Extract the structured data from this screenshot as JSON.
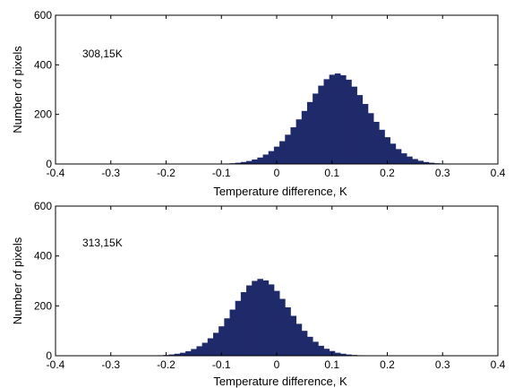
{
  "chart_data": [
    {
      "type": "bar",
      "annotation": "308,15K",
      "xlabel": "Temperature difference, K",
      "ylabel": "Number of pixels",
      "xlim": [
        -0.4,
        0.4
      ],
      "ylim": [
        0,
        600
      ],
      "xticks": [
        "-0.4",
        "-0.3",
        "-0.2",
        "-0.1",
        "0",
        "0.1",
        "0.2",
        "0.3",
        "0.4"
      ],
      "yticks": [
        "0",
        "200",
        "400",
        "600"
      ],
      "grid": false,
      "color": "#1f2a6b",
      "x": [
        -0.09,
        -0.08,
        -0.07,
        -0.06,
        -0.05,
        -0.04,
        -0.03,
        -0.02,
        -0.01,
        0.0,
        0.01,
        0.02,
        0.03,
        0.04,
        0.05,
        0.06,
        0.07,
        0.08,
        0.09,
        0.1,
        0.11,
        0.12,
        0.13,
        0.14,
        0.15,
        0.16,
        0.17,
        0.18,
        0.19,
        0.2,
        0.21,
        0.22,
        0.23,
        0.24,
        0.25,
        0.26,
        0.27,
        0.28,
        0.29,
        0.3,
        0.31,
        0.32,
        0.33,
        0.34
      ],
      "values": [
        2,
        3,
        5,
        8,
        12,
        18,
        26,
        38,
        52,
        70,
        92,
        118,
        148,
        180,
        214,
        250,
        284,
        316,
        342,
        360,
        365,
        358,
        340,
        312,
        278,
        242,
        205,
        170,
        138,
        108,
        82,
        60,
        43,
        30,
        20,
        13,
        8,
        5,
        3,
        2,
        1,
        1,
        0,
        0
      ]
    },
    {
      "type": "bar",
      "annotation": "313,15K",
      "xlabel": "Temperature difference, K",
      "ylabel": "Number of pixels",
      "xlim": [
        -0.4,
        0.4
      ],
      "ylim": [
        0,
        600
      ],
      "xticks": [
        "-0.4",
        "-0.3",
        "-0.2",
        "-0.1",
        "0",
        "0.1",
        "0.2",
        "0.3",
        "0.4"
      ],
      "yticks": [
        "0",
        "200",
        "400",
        "600"
      ],
      "grid": false,
      "color": "#1f2a6b",
      "x": [
        -0.22,
        -0.21,
        -0.2,
        -0.19,
        -0.18,
        -0.17,
        -0.16,
        -0.15,
        -0.14,
        -0.13,
        -0.12,
        -0.11,
        -0.1,
        -0.09,
        -0.08,
        -0.07,
        -0.06,
        -0.05,
        -0.04,
        -0.03,
        -0.02,
        -0.01,
        0.0,
        0.01,
        0.02,
        0.03,
        0.04,
        0.05,
        0.06,
        0.07,
        0.08,
        0.09,
        0.1,
        0.11,
        0.12,
        0.13,
        0.14,
        0.15,
        0.16
      ],
      "values": [
        1,
        2,
        3,
        5,
        8,
        12,
        18,
        27,
        38,
        52,
        70,
        92,
        118,
        150,
        185,
        220,
        255,
        282,
        300,
        308,
        302,
        286,
        260,
        228,
        194,
        160,
        128,
        100,
        76,
        56,
        40,
        28,
        19,
        12,
        8,
        5,
        3,
        2,
        1
      ]
    }
  ]
}
